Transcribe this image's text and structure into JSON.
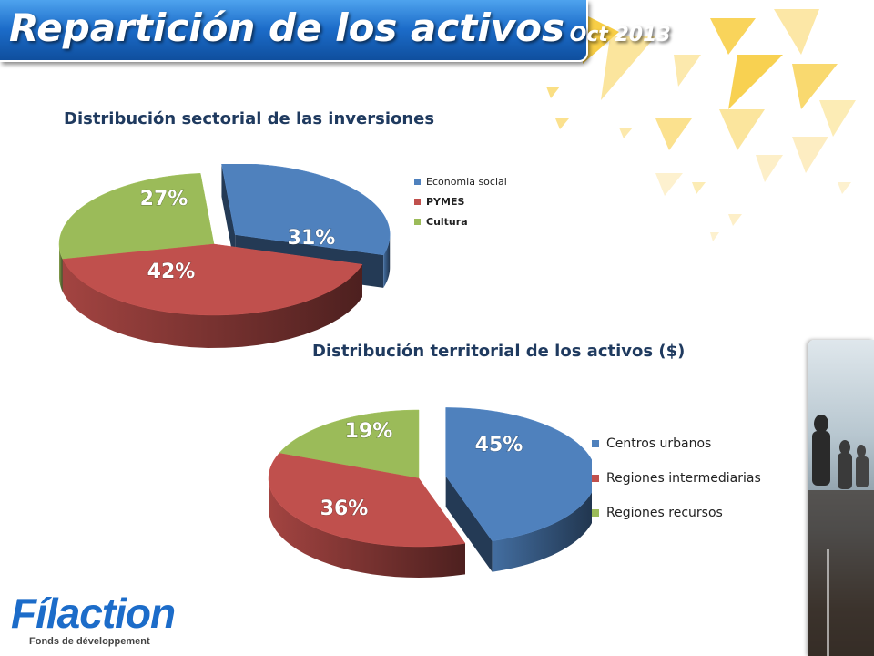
{
  "slide": {
    "title": "Repartición de los activos",
    "title_suffix": "Oct 2013"
  },
  "colors": {
    "banner": "#1c6cc9",
    "blue": "#4f81bd",
    "red": "#c0504d",
    "green": "#9bbb59",
    "deco_yellow": "#f7c932",
    "title_text": "#1f3a5f"
  },
  "logo": {
    "brand": "Fílaction",
    "tagline": "Fonds de développement"
  },
  "chart_data": [
    {
      "type": "pie",
      "title": "Distribución sectorial de las inversiones",
      "legend_position": "right",
      "slices": [
        {
          "label": "Economia social",
          "value": 31,
          "value_label": "31%",
          "color": "#4f81bd",
          "exploded": true
        },
        {
          "label": "PYMES",
          "value": 42,
          "value_label": "42%",
          "color": "#c0504d",
          "exploded": false
        },
        {
          "label": "Cultura",
          "value": 27,
          "value_label": "27%",
          "color": "#9bbb59",
          "exploded": false
        }
      ]
    },
    {
      "type": "pie",
      "title": "Distribución territorial de los activos ($)",
      "legend_position": "right",
      "slices": [
        {
          "label": "Centros urbanos",
          "value": 45,
          "value_label": "45%",
          "color": "#4f81bd",
          "exploded": true
        },
        {
          "label": "Regiones intermediarias",
          "value": 36,
          "value_label": "36%",
          "color": "#c0504d",
          "exploded": false
        },
        {
          "label": "Regiones recursos",
          "value": 19,
          "value_label": "19%",
          "color": "#9bbb59",
          "exploded": false
        }
      ]
    }
  ]
}
